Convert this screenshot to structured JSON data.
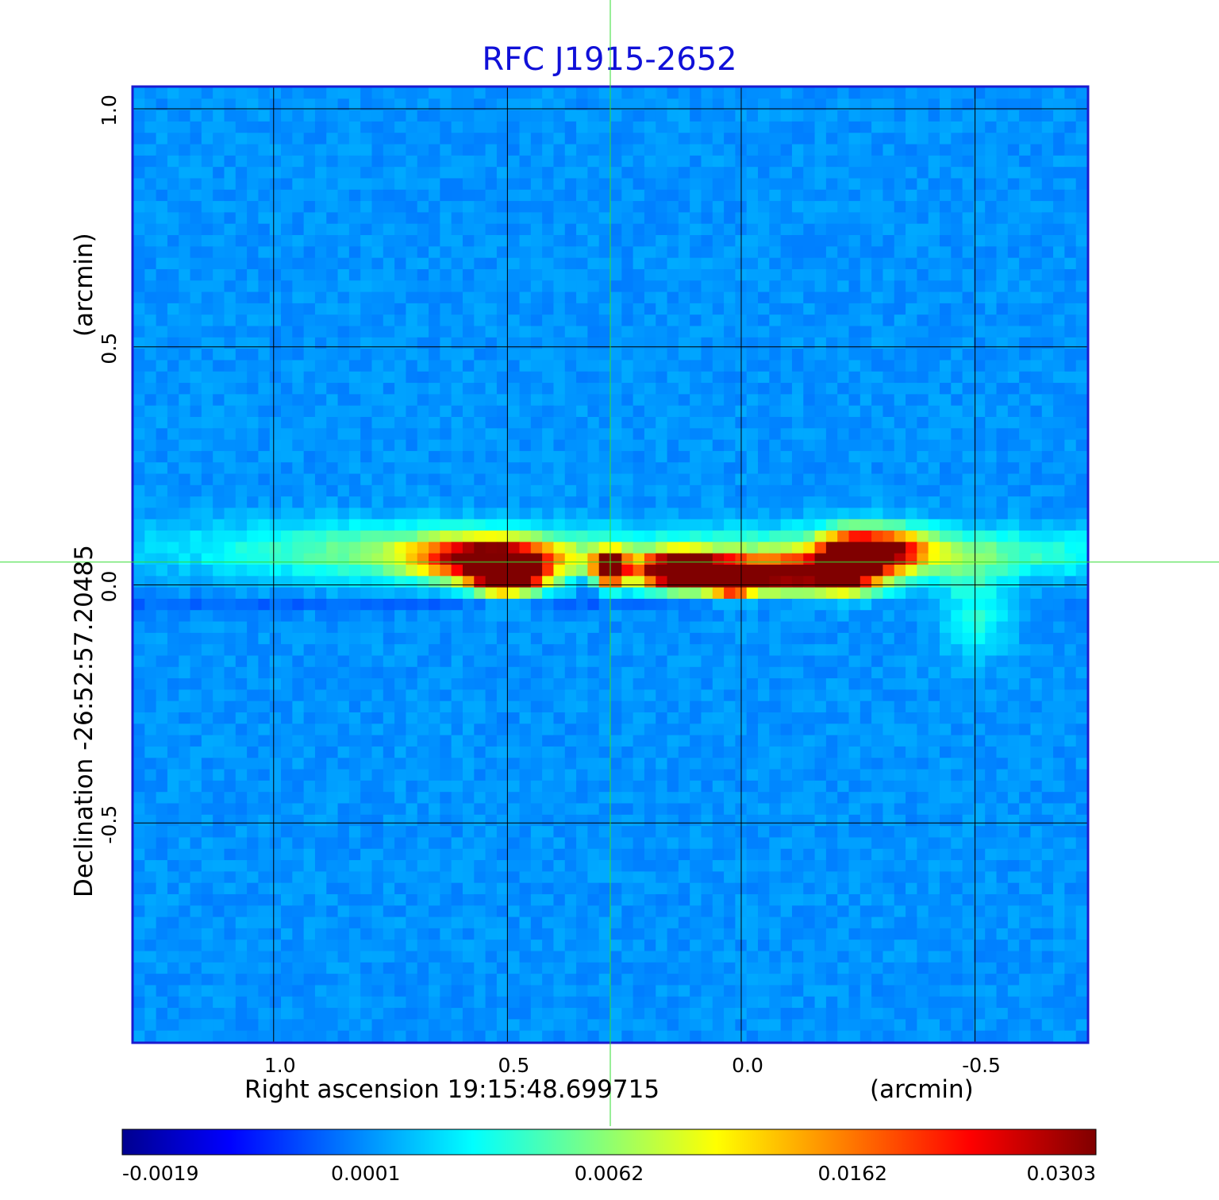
{
  "colors": {
    "title": "#1010d8",
    "frame": "#1a1ad0",
    "crosshair": "#33dd33",
    "grid": "#000000",
    "background_pixel": "#2a90ff"
  },
  "chart_data": {
    "type": "heatmap",
    "title": "RFC J1915-2652",
    "xlabel": "Right ascension  19:15:48.699715",
    "xlabel_unit": "(arcmin)",
    "ylabel": "Declination  -26:52:57.20485",
    "ylabel_unit": "(arcmin)",
    "x_ticks": [
      {
        "value": 1.0,
        "label": "1.0"
      },
      {
        "value": 0.5,
        "label": "0.5"
      },
      {
        "value": 0.0,
        "label": "0.0"
      },
      {
        "value": -0.5,
        "label": "-0.5"
      }
    ],
    "y_ticks": [
      {
        "value": 1.0,
        "label": "1.0"
      },
      {
        "value": 0.5,
        "label": "0.5"
      },
      {
        "value": 0.0,
        "label": "0.0"
      },
      {
        "value": -0.5,
        "label": "-0.5"
      }
    ],
    "xlim": [
      1.3,
      -0.74
    ],
    "ylim": [
      -0.96,
      1.045
    ],
    "x_inverted": true,
    "grid": true,
    "crosshair": {
      "x": 0.28,
      "y": 0.048
    },
    "colormap": "jet",
    "colorbar": {
      "min": -0.0019,
      "max": 0.0303,
      "tick_labels": [
        "-0.0019",
        "0.0001",
        "0.0062",
        "0.0162",
        "0.0303"
      ]
    },
    "emission_components": [
      {
        "x": 0.62,
        "y": 0.06,
        "sigma_x": 0.23,
        "sigma_y": 0.04,
        "level": 0.2
      },
      {
        "x": -0.12,
        "y": 0.06,
        "sigma_x": 0.36,
        "sigma_y": 0.04,
        "level": 0.2
      },
      {
        "x": 0.54,
        "y": 0.055,
        "sigma_x": 0.1,
        "sigma_y": 0.03,
        "level": 0.6
      },
      {
        "x": 0.5,
        "y": 0.02,
        "sigma_x": 0.05,
        "sigma_y": 0.025,
        "level": 0.95
      },
      {
        "x": 0.28,
        "y": 0.035,
        "sigma_x": 0.025,
        "sigma_y": 0.025,
        "level": 0.8
      },
      {
        "x": 0.13,
        "y": 0.03,
        "sigma_x": 0.06,
        "sigma_y": 0.025,
        "level": 0.95
      },
      {
        "x": 0.02,
        "y": 0.01,
        "sigma_x": 0.03,
        "sigma_y": 0.02,
        "level": 0.9
      },
      {
        "x": -0.08,
        "y": 0.02,
        "sigma_x": 0.12,
        "sigma_y": 0.025,
        "level": 0.7
      },
      {
        "x": -0.23,
        "y": 0.05,
        "sigma_x": 0.05,
        "sigma_y": 0.04,
        "level": 0.72
      },
      {
        "x": -0.32,
        "y": 0.075,
        "sigma_x": 0.06,
        "sigma_y": 0.03,
        "level": 0.45
      },
      {
        "x": -0.5,
        "y": -0.05,
        "sigma_x": 0.05,
        "sigma_y": 0.07,
        "level": 0.14
      },
      {
        "x": -0.52,
        "y": 0.07,
        "sigma_x": 0.3,
        "sigma_y": 0.03,
        "level": 0.1
      },
      {
        "x": 0.95,
        "y": 0.08,
        "sigma_x": 0.3,
        "sigma_y": 0.04,
        "level": 0.1
      }
    ],
    "absorption_components": [
      {
        "x": 0.7,
        "y": -0.04,
        "sigma_x": 0.9,
        "sigma_y": 0.012,
        "level": 0.05
      },
      {
        "x": 0.33,
        "y": 0.0,
        "sigma_x": 0.015,
        "sigma_y": 0.02,
        "level": 0.13
      }
    ]
  }
}
